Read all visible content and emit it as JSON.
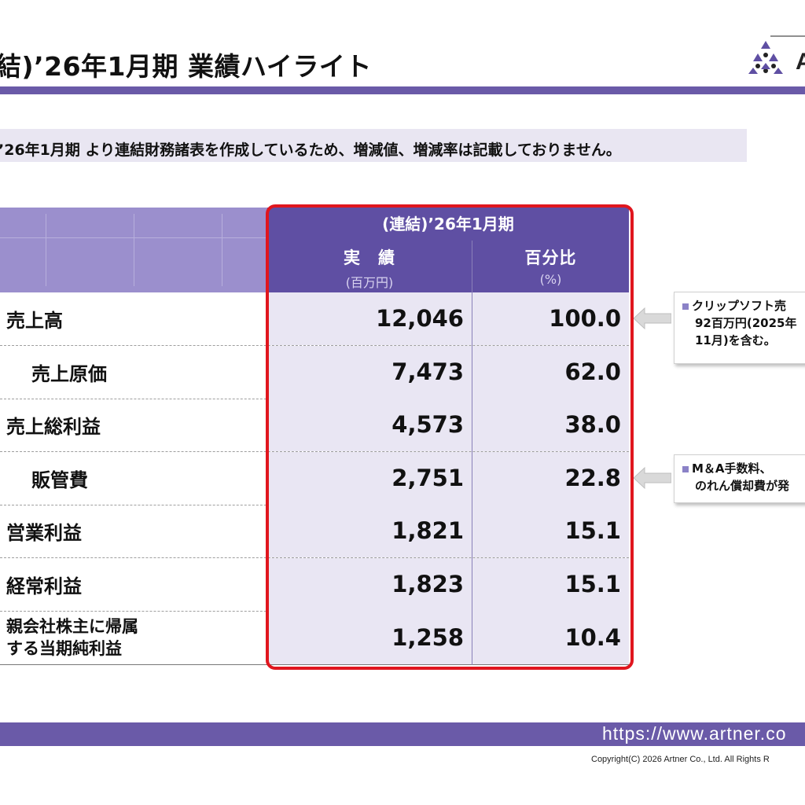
{
  "header": {
    "title": "結)’26年1月期 業績ハイライト",
    "logo_text": "A"
  },
  "notice": "’26年1月期 より連結財務諸表を作成しているため、増減値、増減率は記載しておりません。",
  "table": {
    "period_header": "(連結)’26年1月期",
    "col1_label": "実　績",
    "col1_unit": "(百万円)",
    "col2_label": "百分比",
    "col2_unit": "(%)",
    "rows": [
      {
        "label": "売上高",
        "value": "12,046",
        "ratio": "100.0"
      },
      {
        "label": "売上原価",
        "value": "7,473",
        "ratio": "62.0"
      },
      {
        "label": "売上総利益",
        "value": "4,573",
        "ratio": "38.0"
      },
      {
        "label": "販管費",
        "value": "2,751",
        "ratio": "22.8"
      },
      {
        "label": "営業利益",
        "value": "1,821",
        "ratio": "15.1"
      },
      {
        "label": "経常利益",
        "value": "1,823",
        "ratio": "15.1"
      },
      {
        "label_line1": "親会社株主に帰属",
        "label_line2": "する当期純利益",
        "value": "1,258",
        "ratio": "10.4"
      }
    ]
  },
  "callouts": {
    "sales": {
      "line1": "クリップソフト売",
      "line2": "92百万円(2025年",
      "line3": "11月)を含む。"
    },
    "sga": {
      "line1": "M＆A手数料、",
      "line2": "のれん償却費が発"
    }
  },
  "footer": {
    "url": "https://www.artner.co",
    "copyright": "Copyright(C) 2026 Artner Co., Ltd. All Rights R"
  },
  "colors": {
    "brand_purple": "#6a5aa8",
    "header_purple": "#5f4fa3",
    "cell_bg": "#e9e6f3",
    "highlight_red": "#e0161e"
  }
}
